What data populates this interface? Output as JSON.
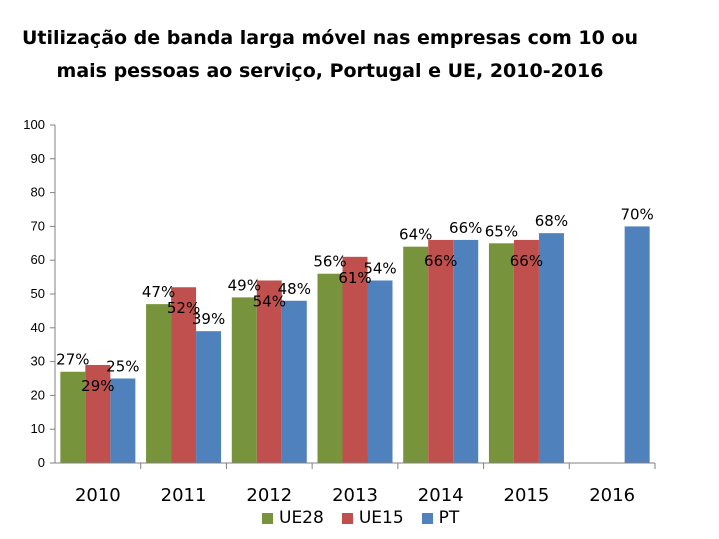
{
  "chart_data": {
    "type": "bar",
    "title": "Utilização de banda larga móvel nas empresas com 10 ou mais pessoas ao serviço, Portugal e UE, 2010-2016",
    "title_lines": [
      "Utilização de banda larga móvel nas empresas com 10 ou",
      "mais pessoas ao serviço, Portugal e UE, 2010-2016"
    ],
    "categories": [
      "2010",
      "2011",
      "2012",
      "2013",
      "2014",
      "2015",
      "2016"
    ],
    "ylim": [
      0,
      100
    ],
    "yticks": [
      "0",
      "10",
      "20",
      "30",
      "40",
      "50",
      "60",
      "70",
      "80",
      "90",
      "100"
    ],
    "grid": false,
    "legend_position": "bottom",
    "series": [
      {
        "name": "UE28",
        "color": "#77933C",
        "values": [
          27,
          47,
          49,
          56,
          64,
          65,
          null
        ],
        "labels": [
          "27%",
          "47%",
          "49%",
          "56%",
          "64%",
          "65%",
          ""
        ]
      },
      {
        "name": "UE15",
        "color": "#C0504D",
        "values": [
          29,
          52,
          54,
          61,
          66,
          66,
          null
        ],
        "labels": [
          "29%",
          "52%",
          "54%",
          "61%",
          "66%",
          "66%",
          ""
        ]
      },
      {
        "name": "PT",
        "color": "#4F81BD",
        "values": [
          25,
          39,
          48,
          54,
          66,
          68,
          70
        ],
        "labels": [
          "25%",
          "39%",
          "48%",
          "54%",
          "66%",
          "68%",
          "70%"
        ]
      }
    ]
  }
}
